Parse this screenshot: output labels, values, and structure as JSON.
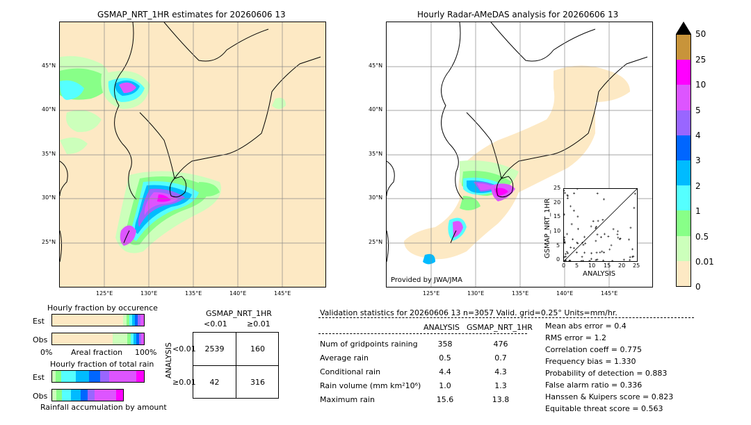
{
  "left_panel": {
    "title": "GSMAP_NRT_1HR estimates for 20260606 13",
    "lat_ticks": [
      "45°N",
      "40°N",
      "35°N",
      "30°N",
      "25°N"
    ],
    "lon_ticks": [
      "125°E",
      "130°E",
      "135°E",
      "140°E",
      "145°E"
    ]
  },
  "right_panel": {
    "title": "Hourly Radar-AMeDAS analysis for 20260606 13",
    "lat_ticks": [
      "45°N",
      "40°N",
      "35°N",
      "30°N",
      "25°N"
    ],
    "lon_ticks": [
      "125°E",
      "130°E",
      "135°E",
      "140°E",
      "145°E"
    ],
    "credit": "Provided by JWA/JMA"
  },
  "colorbar": {
    "labels": [
      "50",
      "25",
      "10",
      "5",
      "4",
      "3",
      "2",
      "1",
      "0.5",
      "0.01",
      "0"
    ],
    "colors": [
      "#c8943a",
      "#ff00ff",
      "#dd55ff",
      "#9966ff",
      "#0066ff",
      "#00bbff",
      "#55ffff",
      "#88ff88",
      "#ccffbb",
      "#fde9c4"
    ]
  },
  "scatter_inset": {
    "xlabel": "ANALYSIS",
    "ylabel": "GSMAP_NRT_1HR",
    "ticks": [
      "0",
      "5",
      "10",
      "15",
      "20",
      "25"
    ]
  },
  "occurrence": {
    "title": "Hourly fraction by occurence",
    "row_labels": [
      "Est",
      "Obs"
    ],
    "axis_left": "0%",
    "axis_mid": "Areal fraction",
    "axis_right": "100%"
  },
  "total_rain": {
    "title": "Hourly fraction of total rain",
    "row_labels": [
      "Est",
      "Obs"
    ],
    "footer": "Rainfall accumulation by amount"
  },
  "contingency": {
    "col_title": "GSMAP_NRT_1HR",
    "col_labels": [
      "<0.01",
      "≥0.01"
    ],
    "row_title": "ANALYSIS",
    "row_labels": [
      "<0.01",
      "≥0.01"
    ],
    "cells": [
      "2539",
      "160",
      "42",
      "316"
    ]
  },
  "validation": {
    "header": "Validation statistics for 20260606 13  n=3057 Valid. grid=0.25° Units=mm/hr.",
    "col_headers": [
      "ANALYSIS",
      "GSMAP_NRT_1HR"
    ],
    "rows": [
      {
        "label": "Num of gridpoints raining",
        "analysis": "358",
        "gsmap": "476"
      },
      {
        "label": "Average rain",
        "analysis": "0.5",
        "gsmap": "0.7"
      },
      {
        "label": "Conditional rain",
        "analysis": "4.4",
        "gsmap": "4.3"
      },
      {
        "label": "Rain volume (mm km²10⁶)",
        "analysis": "1.0",
        "gsmap": "1.3"
      },
      {
        "label": "Maximum rain",
        "analysis": "15.6",
        "gsmap": "13.8"
      }
    ],
    "scores": [
      "Mean abs error =    0.4",
      "RMS error =    1.2",
      "Correlation coeff =  0.775",
      "Frequency bias =  1.330",
      "Probability of detection =  0.883",
      "False alarm ratio =  0.336",
      "Hanssen & Kuipers score =  0.823",
      "Equitable threat score =  0.563"
    ]
  }
}
